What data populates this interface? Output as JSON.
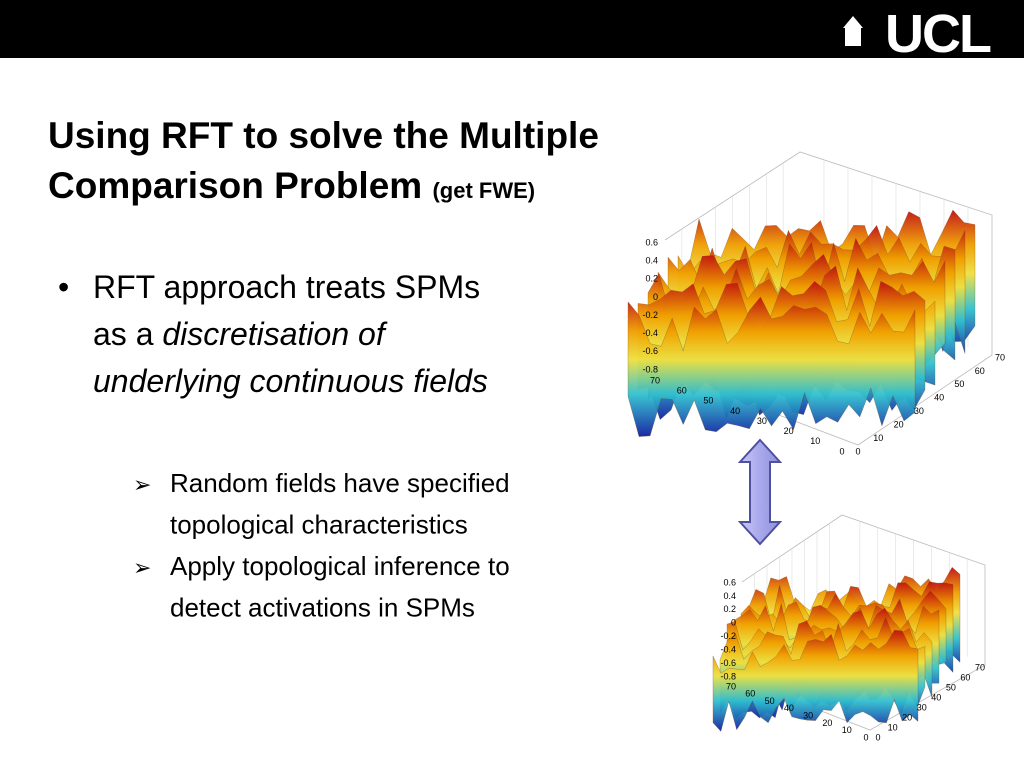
{
  "header": {
    "logo": "UCL"
  },
  "title": {
    "line1": "Using RFT to solve the Multiple",
    "line2": "Comparison Problem",
    "note": "(get FWE)"
  },
  "bullet": {
    "line1": "RFT approach treats SPMs",
    "line2_plain": "as a",
    "line2_italic": "discretisation of",
    "line3": "underlying continuous fields"
  },
  "sub_bullets": [
    [
      "Random fields have specified",
      "topological characteristics"
    ],
    [
      "Apply topological inference to",
      "detect activations in SPMs"
    ]
  ],
  "plots": [
    {
      "z_ticks": [
        "0.6",
        "0.4",
        "0.2",
        "0",
        "-0.2",
        "-0.4",
        "-0.6",
        "-0.8"
      ],
      "x_ticks": [
        "70",
        "60",
        "50",
        "40",
        "30",
        "20",
        "10",
        "0"
      ],
      "y_ticks": [
        "0",
        "10",
        "20",
        "30",
        "40",
        "50",
        "60",
        "70"
      ]
    },
    {
      "z_ticks": [
        "0.6",
        "0.4",
        "0.2",
        "0",
        "-0.2",
        "-0.4",
        "-0.6",
        "-0.8"
      ],
      "x_ticks": [
        "70",
        "60",
        "50",
        "40",
        "30",
        "20",
        "10",
        "0"
      ],
      "y_ticks": [
        "0",
        "10",
        "20",
        "30",
        "40",
        "50",
        "60",
        "70"
      ]
    }
  ]
}
